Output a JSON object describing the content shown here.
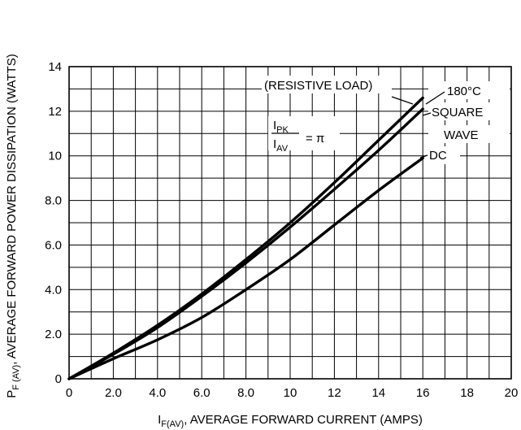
{
  "chart_data": {
    "type": "line",
    "xlabel_main": "I",
    "xlabel_sub": "F(AV)",
    "xlabel_rest": ", AVERAGE FORWARD CURRENT (AMPS)",
    "ylabel_main": "P",
    "ylabel_sub": "F (AV)",
    "ylabel_rest": ", AVERAGE FORWARD POWER DISSIPATION (WATTS)",
    "xlim": [
      0,
      20
    ],
    "ylim": [
      0,
      14
    ],
    "x_ticks": [
      "0",
      "2.0",
      "4.0",
      "6.0",
      "8.0",
      "10",
      "12",
      "14",
      "16",
      "18",
      "20"
    ],
    "y_ticks": [
      "0",
      "2.0",
      "4.0",
      "6.0",
      "8.0",
      "10",
      "12",
      "14"
    ],
    "x_grid_step": 1,
    "y_grid_step": 1,
    "grid": true,
    "series": [
      {
        "x": [
          0,
          2,
          4,
          6,
          8,
          10,
          12,
          14,
          16
        ],
        "y": [
          0,
          1.15,
          2.4,
          3.8,
          5.35,
          7.0,
          8.8,
          10.7,
          12.6
        ]
      },
      {
        "x": [
          0,
          2,
          4,
          6,
          8,
          10,
          12,
          14,
          16
        ],
        "y": [
          0,
          1.1,
          2.3,
          3.7,
          5.2,
          6.8,
          8.5,
          10.25,
          12.1
        ]
      },
      {
        "x": [
          0,
          2,
          4,
          6,
          8,
          10,
          12,
          14,
          16
        ],
        "y": [
          0,
          0.9,
          1.75,
          2.75,
          4.0,
          5.35,
          6.9,
          8.45,
          9.9
        ]
      }
    ],
    "annotations": {
      "resistive_load": "(RESISTIVE LOAD)",
      "deg180": "180°C",
      "square": "SQUARE",
      "wave": "WAVE",
      "dc": "DC",
      "ipk_main": "I",
      "ipk_sub": "PK",
      "iav_main": "I",
      "iav_sub": "AV",
      "eq_pi": "= π"
    }
  }
}
